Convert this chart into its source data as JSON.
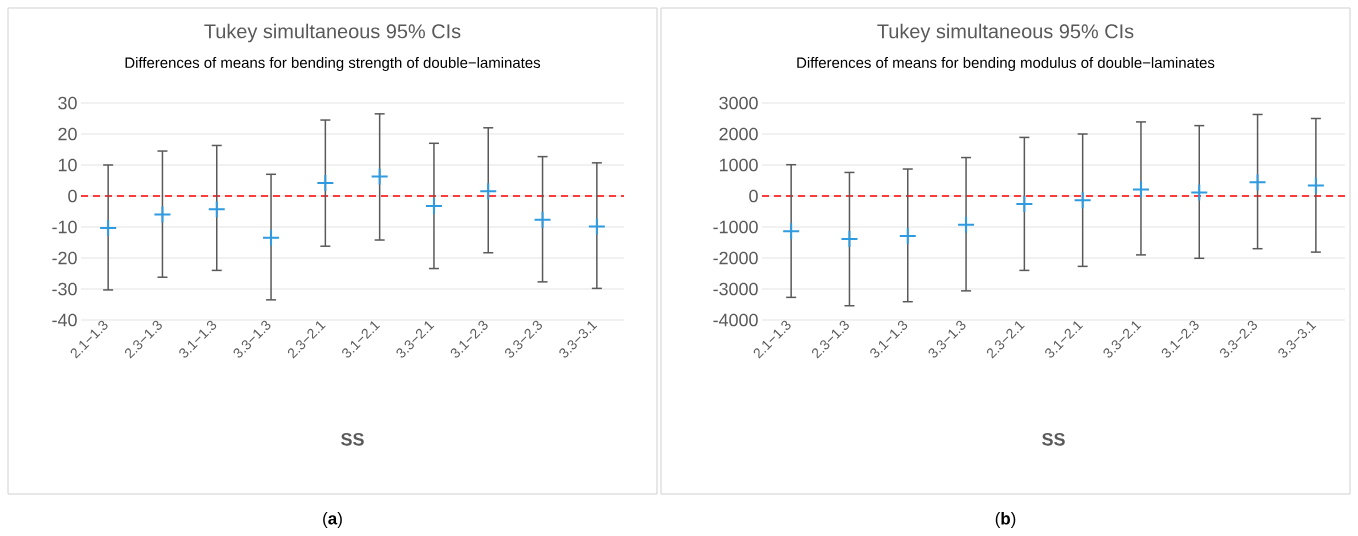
{
  "chart_data": [
    {
      "type": "scatter",
      "title": "Tukey simultaneous 95% CIs",
      "subtitle": "Differences of means for bending strength of double−laminates",
      "xlabel": "SS",
      "categories": [
        "2.1−1.3",
        "2.3−1.3",
        "3.1−1.3",
        "3.3−1.3",
        "2.3−2.1",
        "3.1−2.1",
        "3.3−2.1",
        "3.1−2.3",
        "3.3−2.3",
        "3.3−3.1"
      ],
      "values": [
        -10.3,
        -6,
        -4.3,
        -13.5,
        4.2,
        6.3,
        -3.2,
        1.5,
        -7.7,
        -9.8
      ],
      "errors": [
        [
          -30.3,
          10
        ],
        [
          -26.2,
          14.5
        ],
        [
          -24,
          16.3
        ],
        [
          -33.5,
          7
        ],
        [
          -16.2,
          24.5
        ],
        [
          -14.2,
          26.5
        ],
        [
          -23.4,
          17
        ],
        [
          -18.3,
          22
        ],
        [
          -27.7,
          12.7
        ],
        [
          -29.8,
          10.7
        ]
      ],
      "color": "#2e9be0",
      "marker": "cross",
      "grid": "y",
      "ylim": [
        -40,
        30
      ],
      "yticks": [
        -40,
        -30,
        -20,
        -10,
        0,
        10,
        20,
        30
      ],
      "ref_lines": [
        {
          "axis": "y",
          "value": 0,
          "color": "#ff0000",
          "line_style": "dashed"
        }
      ],
      "annotations": [
        "(**a**)"
      ]
    },
    {
      "type": "scatter",
      "title": "Tukey simultaneous 95% CIs",
      "subtitle": "Differences of means for bending modulus of double−laminates",
      "xlabel": "SS",
      "categories": [
        "2.1−1.3",
        "2.3−1.3",
        "3.1−1.3",
        "3.3−1.3",
        "2.3−2.1",
        "3.1−2.1",
        "3.3−2.1",
        "3.1−2.3",
        "3.3−2.3",
        "3.3−3.1"
      ],
      "values": [
        -1140,
        -1390,
        -1290,
        -930,
        -260,
        -140,
        210,
        110,
        440,
        340
      ],
      "errors": [
        [
          -3270,
          1010
        ],
        [
          -3540,
          760
        ],
        [
          -3410,
          870
        ],
        [
          -3060,
          1240
        ],
        [
          -2400,
          1890
        ],
        [
          -2270,
          2000
        ],
        [
          -1900,
          2390
        ],
        [
          -2010,
          2270
        ],
        [
          -1700,
          2630
        ],
        [
          -1810,
          2500
        ]
      ],
      "color": "#2e9be0",
      "marker": "cross",
      "grid": "y",
      "ylim": [
        -4000,
        3000
      ],
      "yticks": [
        -4000,
        -3000,
        -2000,
        -1000,
        0,
        1000,
        2000,
        3000
      ],
      "ref_lines": [
        {
          "axis": "y",
          "value": 0,
          "color": "#ff0000",
          "line_style": "dashed"
        }
      ],
      "annotations": [
        "(**b**)"
      ]
    }
  ]
}
